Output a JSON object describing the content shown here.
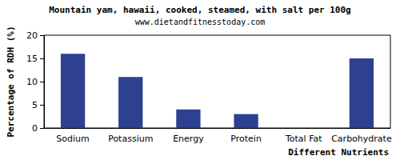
{
  "chart_data": {
    "type": "bar",
    "title": "Mountain yam, hawaii, cooked, steamed, with salt per 100g",
    "subtitle": "www.dietandfitnesstoday.com",
    "x_label": "Different Nutrients",
    "y_label": "Percentage of RDH (%)",
    "categories": [
      "Sodium",
      "Potassium",
      "Energy",
      "Protein",
      "Total Fat",
      "Carbohydrate"
    ],
    "values": [
      16,
      11,
      4,
      3,
      0,
      15
    ],
    "color": "#2d4190",
    "ylim": [
      0,
      20
    ],
    "yticks": [
      0,
      5,
      10,
      15,
      20
    ],
    "grid": false
  }
}
